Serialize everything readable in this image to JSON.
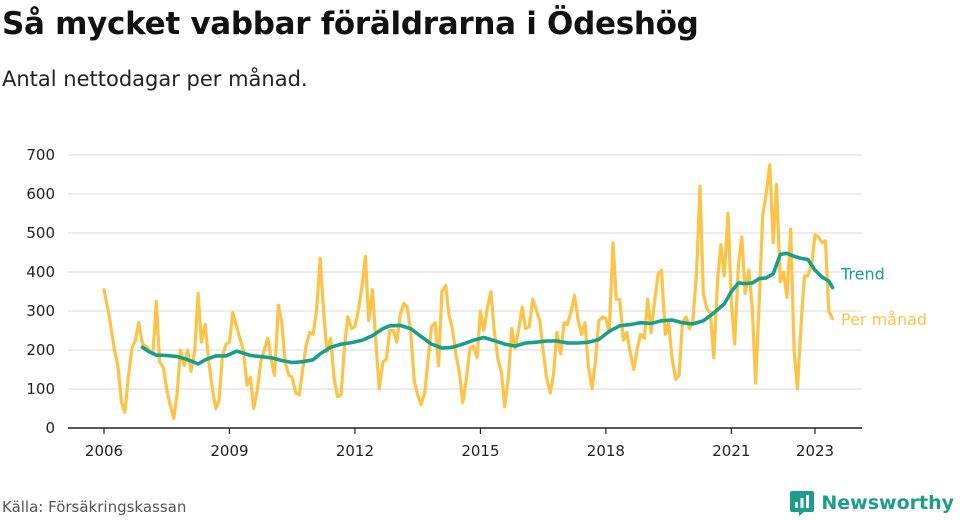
{
  "title": "Så mycket vabbar föräldrarna i Ödeshög",
  "subtitle": "Antal nettodagar per månad.",
  "source": "Källa: Försäkringskassan",
  "brand": {
    "name": "Newsworthy",
    "icon": "newsworthy-logo-icon",
    "color": "#1a9e8a"
  },
  "colors": {
    "monthly": "#fcc347",
    "trend": "#16a08b",
    "grid": "#d9d9d9",
    "axis": "#222222"
  },
  "chart_data": {
    "type": "line",
    "title": "Så mycket vabbar föräldrarna i Ödeshög",
    "ylabel": "",
    "ylim": [
      0,
      700
    ],
    "yticks": [
      0,
      100,
      200,
      300,
      400,
      500,
      600,
      700
    ],
    "xlim": [
      2005.8,
      2023.9
    ],
    "xticks": [
      2006,
      2009,
      2012,
      2015,
      2018,
      2021,
      2023
    ],
    "grid": true,
    "series": [
      {
        "name": "Per månad",
        "color": "#fcc347",
        "points": [
          [
            2006.0,
            355
          ],
          [
            2006.12,
            290
          ],
          [
            2006.25,
            200
          ],
          [
            2006.33,
            160
          ],
          [
            2006.42,
            65
          ],
          [
            2006.5,
            40
          ],
          [
            2006.58,
            130
          ],
          [
            2006.67,
            205
          ],
          [
            2006.75,
            225
          ],
          [
            2006.83,
            270
          ],
          [
            2006.92,
            215
          ],
          [
            2007.0,
            210
          ],
          [
            2007.08,
            200
          ],
          [
            2007.17,
            190
          ],
          [
            2007.25,
            325
          ],
          [
            2007.33,
            170
          ],
          [
            2007.42,
            155
          ],
          [
            2007.5,
            100
          ],
          [
            2007.58,
            60
          ],
          [
            2007.67,
            25
          ],
          [
            2007.75,
            90
          ],
          [
            2007.83,
            200
          ],
          [
            2007.92,
            160
          ],
          [
            2008.0,
            200
          ],
          [
            2008.08,
            145
          ],
          [
            2008.17,
            200
          ],
          [
            2008.25,
            345
          ],
          [
            2008.33,
            220
          ],
          [
            2008.42,
            265
          ],
          [
            2008.5,
            175
          ],
          [
            2008.58,
            110
          ],
          [
            2008.67,
            50
          ],
          [
            2008.75,
            70
          ],
          [
            2008.83,
            185
          ],
          [
            2008.92,
            215
          ],
          [
            2009.0,
            220
          ],
          [
            2009.08,
            295
          ],
          [
            2009.17,
            260
          ],
          [
            2009.25,
            230
          ],
          [
            2009.33,
            200
          ],
          [
            2009.42,
            110
          ],
          [
            2009.5,
            130
          ],
          [
            2009.58,
            50
          ],
          [
            2009.67,
            100
          ],
          [
            2009.75,
            170
          ],
          [
            2009.83,
            200
          ],
          [
            2009.92,
            230
          ],
          [
            2010.0,
            175
          ],
          [
            2010.08,
            135
          ],
          [
            2010.17,
            315
          ],
          [
            2010.25,
            270
          ],
          [
            2010.33,
            170
          ],
          [
            2010.42,
            135
          ],
          [
            2010.5,
            130
          ],
          [
            2010.58,
            90
          ],
          [
            2010.67,
            85
          ],
          [
            2010.75,
            150
          ],
          [
            2010.83,
            210
          ],
          [
            2010.92,
            245
          ],
          [
            2011.0,
            240
          ],
          [
            2011.08,
            300
          ],
          [
            2011.17,
            435
          ],
          [
            2011.25,
            300
          ],
          [
            2011.33,
            195
          ],
          [
            2011.42,
            230
          ],
          [
            2011.5,
            130
          ],
          [
            2011.58,
            80
          ],
          [
            2011.67,
            85
          ],
          [
            2011.75,
            210
          ],
          [
            2011.83,
            285
          ],
          [
            2011.92,
            255
          ],
          [
            2012.0,
            260
          ],
          [
            2012.08,
            300
          ],
          [
            2012.17,
            365
          ],
          [
            2012.25,
            440
          ],
          [
            2012.33,
            275
          ],
          [
            2012.42,
            355
          ],
          [
            2012.5,
            220
          ],
          [
            2012.58,
            100
          ],
          [
            2012.67,
            170
          ],
          [
            2012.75,
            175
          ],
          [
            2012.83,
            250
          ],
          [
            2012.92,
            250
          ],
          [
            2013.0,
            220
          ],
          [
            2013.08,
            290
          ],
          [
            2013.17,
            320
          ],
          [
            2013.25,
            310
          ],
          [
            2013.33,
            250
          ],
          [
            2013.42,
            120
          ],
          [
            2013.5,
            85
          ],
          [
            2013.58,
            60
          ],
          [
            2013.67,
            90
          ],
          [
            2013.75,
            175
          ],
          [
            2013.83,
            260
          ],
          [
            2013.92,
            270
          ],
          [
            2014.0,
            160
          ],
          [
            2014.08,
            350
          ],
          [
            2014.17,
            365
          ],
          [
            2014.25,
            290
          ],
          [
            2014.33,
            255
          ],
          [
            2014.42,
            185
          ],
          [
            2014.5,
            140
          ],
          [
            2014.58,
            65
          ],
          [
            2014.67,
            130
          ],
          [
            2014.75,
            205
          ],
          [
            2014.83,
            210
          ],
          [
            2014.92,
            180
          ],
          [
            2015.0,
            300
          ],
          [
            2015.08,
            250
          ],
          [
            2015.17,
            310
          ],
          [
            2015.25,
            350
          ],
          [
            2015.33,
            250
          ],
          [
            2015.42,
            175
          ],
          [
            2015.5,
            145
          ],
          [
            2015.58,
            55
          ],
          [
            2015.67,
            130
          ],
          [
            2015.75,
            255
          ],
          [
            2015.83,
            205
          ],
          [
            2015.92,
            255
          ],
          [
            2016.0,
            310
          ],
          [
            2016.08,
            255
          ],
          [
            2016.17,
            260
          ],
          [
            2016.25,
            330
          ],
          [
            2016.33,
            305
          ],
          [
            2016.42,
            275
          ],
          [
            2016.5,
            200
          ],
          [
            2016.58,
            130
          ],
          [
            2016.67,
            90
          ],
          [
            2016.75,
            140
          ],
          [
            2016.83,
            245
          ],
          [
            2016.92,
            190
          ],
          [
            2017.0,
            270
          ],
          [
            2017.08,
            265
          ],
          [
            2017.17,
            300
          ],
          [
            2017.25,
            340
          ],
          [
            2017.33,
            280
          ],
          [
            2017.42,
            240
          ],
          [
            2017.5,
            270
          ],
          [
            2017.58,
            160
          ],
          [
            2017.67,
            100
          ],
          [
            2017.75,
            170
          ],
          [
            2017.83,
            275
          ],
          [
            2017.92,
            285
          ],
          [
            2018.0,
            280
          ],
          [
            2018.08,
            245
          ],
          [
            2018.17,
            475
          ],
          [
            2018.25,
            330
          ],
          [
            2018.33,
            330
          ],
          [
            2018.42,
            225
          ],
          [
            2018.5,
            245
          ],
          [
            2018.58,
            195
          ],
          [
            2018.67,
            150
          ],
          [
            2018.75,
            205
          ],
          [
            2018.83,
            240
          ],
          [
            2018.92,
            230
          ],
          [
            2019.0,
            330
          ],
          [
            2019.08,
            245
          ],
          [
            2019.17,
            330
          ],
          [
            2019.25,
            395
          ],
          [
            2019.33,
            405
          ],
          [
            2019.42,
            240
          ],
          [
            2019.5,
            270
          ],
          [
            2019.58,
            180
          ],
          [
            2019.67,
            125
          ],
          [
            2019.75,
            135
          ],
          [
            2019.83,
            270
          ],
          [
            2019.92,
            285
          ],
          [
            2020.0,
            255
          ],
          [
            2020.08,
            275
          ],
          [
            2020.17,
            400
          ],
          [
            2020.25,
            620
          ],
          [
            2020.33,
            345
          ],
          [
            2020.42,
            305
          ],
          [
            2020.5,
            295
          ],
          [
            2020.58,
            180
          ],
          [
            2020.67,
            380
          ],
          [
            2020.75,
            470
          ],
          [
            2020.83,
            390
          ],
          [
            2020.92,
            550
          ],
          [
            2021.0,
            320
          ],
          [
            2021.08,
            215
          ],
          [
            2021.17,
            420
          ],
          [
            2021.25,
            490
          ],
          [
            2021.33,
            345
          ],
          [
            2021.42,
            405
          ],
          [
            2021.5,
            305
          ],
          [
            2021.58,
            115
          ],
          [
            2021.67,
            335
          ],
          [
            2021.75,
            545
          ],
          [
            2021.83,
            600
          ],
          [
            2021.92,
            675
          ],
          [
            2022.0,
            475
          ],
          [
            2022.08,
            625
          ],
          [
            2022.17,
            375
          ],
          [
            2022.25,
            400
          ],
          [
            2022.33,
            335
          ],
          [
            2022.42,
            510
          ],
          [
            2022.5,
            200
          ],
          [
            2022.58,
            100
          ],
          [
            2022.67,
            270
          ],
          [
            2022.75,
            390
          ],
          [
            2022.83,
            390
          ],
          [
            2022.92,
            420
          ],
          [
            2023.0,
            495
          ],
          [
            2023.08,
            490
          ],
          [
            2023.17,
            475
          ],
          [
            2023.25,
            480
          ],
          [
            2023.33,
            300
          ],
          [
            2023.42,
            280
          ]
        ]
      },
      {
        "name": "Trend",
        "color": "#16a08b",
        "points": [
          [
            2006.92,
            207
          ],
          [
            2007.08,
            195
          ],
          [
            2007.25,
            187
          ],
          [
            2007.5,
            186
          ],
          [
            2007.75,
            183
          ],
          [
            2007.92,
            178
          ],
          [
            2008.08,
            172
          ],
          [
            2008.25,
            164
          ],
          [
            2008.42,
            175
          ],
          [
            2008.67,
            185
          ],
          [
            2008.92,
            185
          ],
          [
            2009.17,
            197
          ],
          [
            2009.33,
            192
          ],
          [
            2009.5,
            186
          ],
          [
            2009.75,
            183
          ],
          [
            2010.0,
            180
          ],
          [
            2010.25,
            173
          ],
          [
            2010.5,
            168
          ],
          [
            2010.75,
            170
          ],
          [
            2011.0,
            175
          ],
          [
            2011.17,
            190
          ],
          [
            2011.42,
            207
          ],
          [
            2011.67,
            215
          ],
          [
            2011.92,
            219
          ],
          [
            2012.17,
            225
          ],
          [
            2012.42,
            237
          ],
          [
            2012.67,
            255
          ],
          [
            2012.83,
            262
          ],
          [
            2013.08,
            263
          ],
          [
            2013.33,
            255
          ],
          [
            2013.58,
            235
          ],
          [
            2013.83,
            215
          ],
          [
            2014.08,
            205
          ],
          [
            2014.33,
            207
          ],
          [
            2014.58,
            215
          ],
          [
            2014.83,
            225
          ],
          [
            2015.08,
            232
          ],
          [
            2015.33,
            224
          ],
          [
            2015.58,
            215
          ],
          [
            2015.83,
            210
          ],
          [
            2016.08,
            218
          ],
          [
            2016.33,
            220
          ],
          [
            2016.58,
            223
          ],
          [
            2016.83,
            223
          ],
          [
            2017.08,
            218
          ],
          [
            2017.33,
            218
          ],
          [
            2017.58,
            220
          ],
          [
            2017.83,
            227
          ],
          [
            2018.08,
            248
          ],
          [
            2018.33,
            262
          ],
          [
            2018.58,
            265
          ],
          [
            2018.83,
            270
          ],
          [
            2019.08,
            268
          ],
          [
            2019.33,
            275
          ],
          [
            2019.58,
            277
          ],
          [
            2019.83,
            270
          ],
          [
            2020.08,
            267
          ],
          [
            2020.33,
            275
          ],
          [
            2020.58,
            295
          ],
          [
            2020.83,
            318
          ],
          [
            2021.0,
            350
          ],
          [
            2021.17,
            372
          ],
          [
            2021.33,
            370
          ],
          [
            2021.5,
            372
          ],
          [
            2021.67,
            383
          ],
          [
            2021.83,
            385
          ],
          [
            2022.0,
            395
          ],
          [
            2022.17,
            445
          ],
          [
            2022.33,
            448
          ],
          [
            2022.5,
            440
          ],
          [
            2022.67,
            435
          ],
          [
            2022.83,
            432
          ],
          [
            2023.0,
            405
          ],
          [
            2023.17,
            387
          ],
          [
            2023.33,
            377
          ],
          [
            2023.42,
            360
          ]
        ]
      }
    ]
  }
}
